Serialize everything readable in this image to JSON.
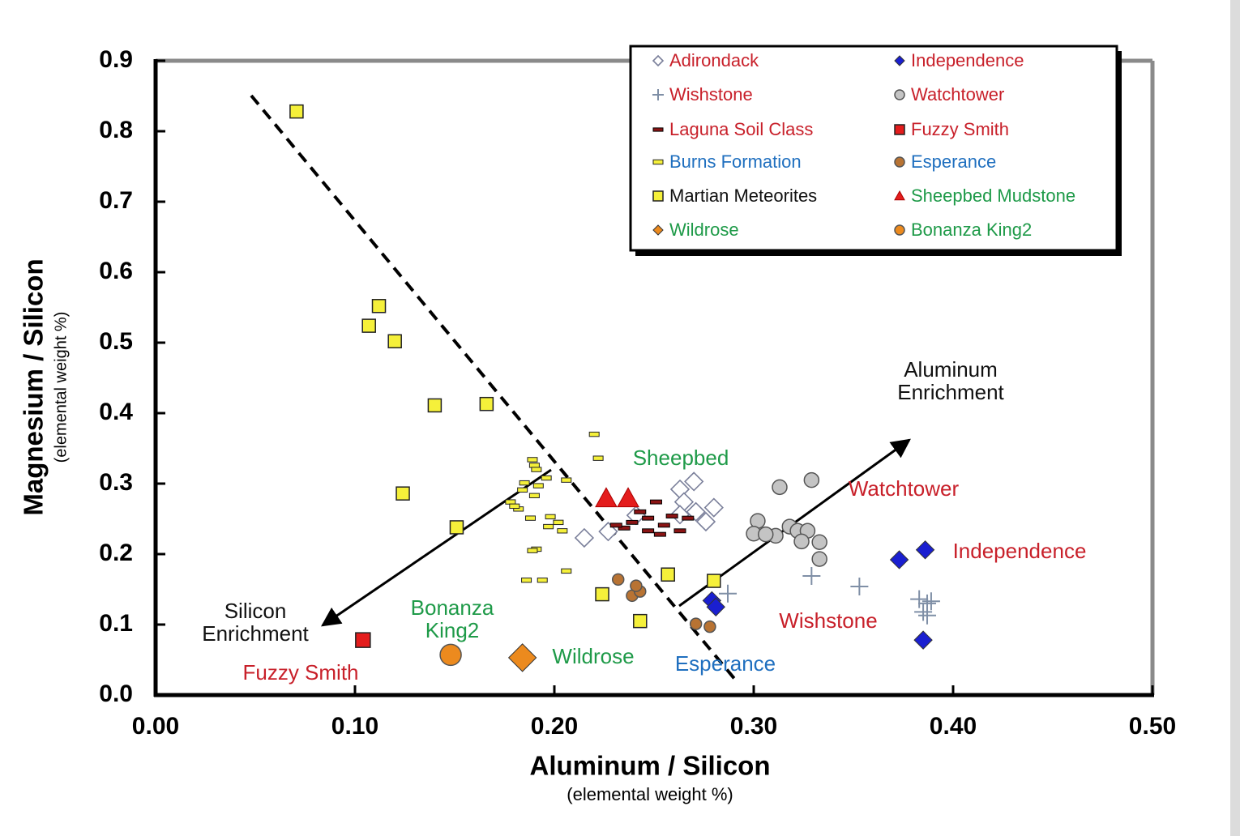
{
  "chart_data": {
    "type": "scatter",
    "x_label": "Aluminum / Silicon",
    "x_sublabel": "(elemental weight %)",
    "y_label": "Magnesium / Silicon",
    "y_sublabel": "(elemental weight %)",
    "xlim": [
      0,
      0.5
    ],
    "ylim": [
      0,
      0.9
    ],
    "xticks": [
      {
        "value": 0,
        "label": "0.00"
      },
      {
        "value": 0.1,
        "label": "0.10"
      },
      {
        "value": 0.2,
        "label": "0.20"
      },
      {
        "value": 0.3,
        "label": "0.30"
      },
      {
        "value": 0.4,
        "label": "0.40"
      },
      {
        "value": 0.5,
        "label": "0.50"
      }
    ],
    "yticks": [
      {
        "value": 0,
        "label": "0.0"
      },
      0.1,
      0.2,
      0.3,
      0.4,
      0.5,
      0.6,
      0.7,
      0.8,
      0.9
    ],
    "legend": "upper right",
    "series": [
      {
        "name": "Adirondack",
        "marker": "open-diamond",
        "color": "#7a7f9a",
        "label_color": "#c8202a",
        "x": [
          0.215,
          0.227,
          0.263,
          0.27,
          0.265,
          0.271,
          0.276,
          0.28,
          0.263,
          0.241
        ],
        "values": [
          0.223,
          0.232,
          0.292,
          0.303,
          0.274,
          0.26,
          0.246,
          0.266,
          0.256,
          0.255
        ]
      },
      {
        "name": "Wishstone",
        "marker": "plus",
        "color": "#7f8fa6",
        "label_color": "#c8202a",
        "x": [
          0.287,
          0.329,
          0.353,
          0.383,
          0.387,
          0.389,
          0.385,
          0.387
        ],
        "values": [
          0.144,
          0.169,
          0.154,
          0.136,
          0.13,
          0.133,
          0.118,
          0.113
        ]
      },
      {
        "name": "Laguna Soil Class",
        "marker": "dash",
        "color": "#8b1414",
        "label_color": "#c8202a",
        "x": [
          0.243,
          0.247,
          0.239,
          0.255,
          0.263,
          0.235,
          0.251,
          0.259,
          0.247,
          0.267,
          0.231,
          0.253
        ],
        "values": [
          0.26,
          0.251,
          0.245,
          0.241,
          0.233,
          0.237,
          0.274,
          0.254,
          0.233,
          0.251,
          0.241,
          0.228
        ]
      },
      {
        "name": "Burns Formation",
        "marker": "small-rect",
        "color": "#f5f03a",
        "label_color": "#1f6fbf",
        "x": [
          0.22,
          0.222,
          0.186,
          0.194,
          0.206,
          0.191,
          0.189,
          0.19,
          0.191,
          0.185,
          0.192,
          0.196,
          0.184,
          0.19,
          0.178,
          0.182,
          0.188,
          0.198,
          0.202,
          0.197,
          0.204,
          0.189,
          0.206,
          0.18
        ],
        "values": [
          0.37,
          0.336,
          0.163,
          0.163,
          0.176,
          0.207,
          0.334,
          0.326,
          0.32,
          0.301,
          0.297,
          0.308,
          0.291,
          0.283,
          0.274,
          0.264,
          0.251,
          0.253,
          0.245,
          0.239,
          0.233,
          0.205,
          0.305,
          0.268
        ]
      },
      {
        "name": "Martian Meteorites",
        "marker": "square",
        "color": "#f5f03a",
        "label_color": "#111111",
        "x": [
          0.0707,
          0.112,
          0.107,
          0.12,
          0.14,
          0.166,
          0.124,
          0.151,
          0.257,
          0.28,
          0.224,
          0.243
        ],
        "values": [
          0.828,
          0.552,
          0.524,
          0.502,
          0.411,
          0.413,
          0.286,
          0.238,
          0.171,
          0.162,
          0.143,
          0.105
        ]
      },
      {
        "name": "Wildrose",
        "marker": "diamond",
        "color": "#ec8a1e",
        "label_color": "#1e9a48",
        "x": [
          0.184
        ],
        "values": [
          0.053
        ]
      },
      {
        "name": "Independence",
        "marker": "diamond",
        "color": "#1a1fd0",
        "label_color": "#c8202a",
        "x": [
          0.373,
          0.386,
          0.385,
          0.279,
          0.281
        ],
        "values": [
          0.192,
          0.206,
          0.078,
          0.134,
          0.125
        ]
      },
      {
        "name": "Watchtower",
        "marker": "circle",
        "color": "#c4c4c4",
        "label_color": "#c8202a",
        "x": [
          0.313,
          0.329,
          0.302,
          0.3,
          0.311,
          0.318,
          0.322,
          0.327,
          0.324,
          0.333,
          0.333,
          0.306
        ],
        "values": [
          0.295,
          0.305,
          0.247,
          0.229,
          0.226,
          0.239,
          0.233,
          0.233,
          0.218,
          0.217,
          0.193,
          0.228
        ]
      },
      {
        "name": "Fuzzy Smith",
        "marker": "square",
        "color": "#e41c1c",
        "label_color": "#c8202a",
        "x": [
          0.104
        ],
        "values": [
          0.078
        ]
      },
      {
        "name": "Esperance",
        "marker": "circle",
        "color": "#b87333",
        "label_color": "#1f6fbf",
        "x": [
          0.232,
          0.239,
          0.243,
          0.241,
          0.271,
          0.278
        ],
        "values": [
          0.164,
          0.141,
          0.147,
          0.155,
          0.101,
          0.097
        ]
      },
      {
        "name": "Sheepbed Mudstone",
        "marker": "triangle",
        "color": "#e41c1c",
        "label_color": "#1e9a48",
        "x": [
          0.226,
          0.237
        ],
        "values": [
          0.279,
          0.279
        ]
      },
      {
        "name": "Bonanza King2",
        "marker": "circle",
        "color": "#ec8a1e",
        "label_color": "#1e9a48",
        "x": [
          0.148
        ],
        "values": [
          0.057
        ]
      }
    ],
    "annotations": [
      {
        "lines": [
          "Sheepbed"
        ],
        "color": "#1e9a48"
      },
      {
        "lines": [
          "Watchtower"
        ],
        "color": "#c8202a"
      },
      {
        "lines": [
          "Independence"
        ],
        "color": "#c8202a"
      },
      {
        "lines": [
          "Wishstone"
        ],
        "color": "#c8202a"
      },
      {
        "lines": [
          "Esperance"
        ],
        "color": "#1f6fbf"
      },
      {
        "lines": [
          "Wildrose"
        ],
        "color": "#1e9a48"
      },
      {
        "lines": [
          "Bonanza",
          "King2"
        ],
        "color": "#1e9a48"
      },
      {
        "lines": [
          "Fuzzy Smith"
        ],
        "color": "#c8202a"
      },
      {
        "lines": [
          "Silicon",
          "Enrichment"
        ],
        "color": "#111111"
      },
      {
        "lines": [
          "Aluminum",
          "Enrichment"
        ],
        "color": "#111111"
      }
    ]
  }
}
